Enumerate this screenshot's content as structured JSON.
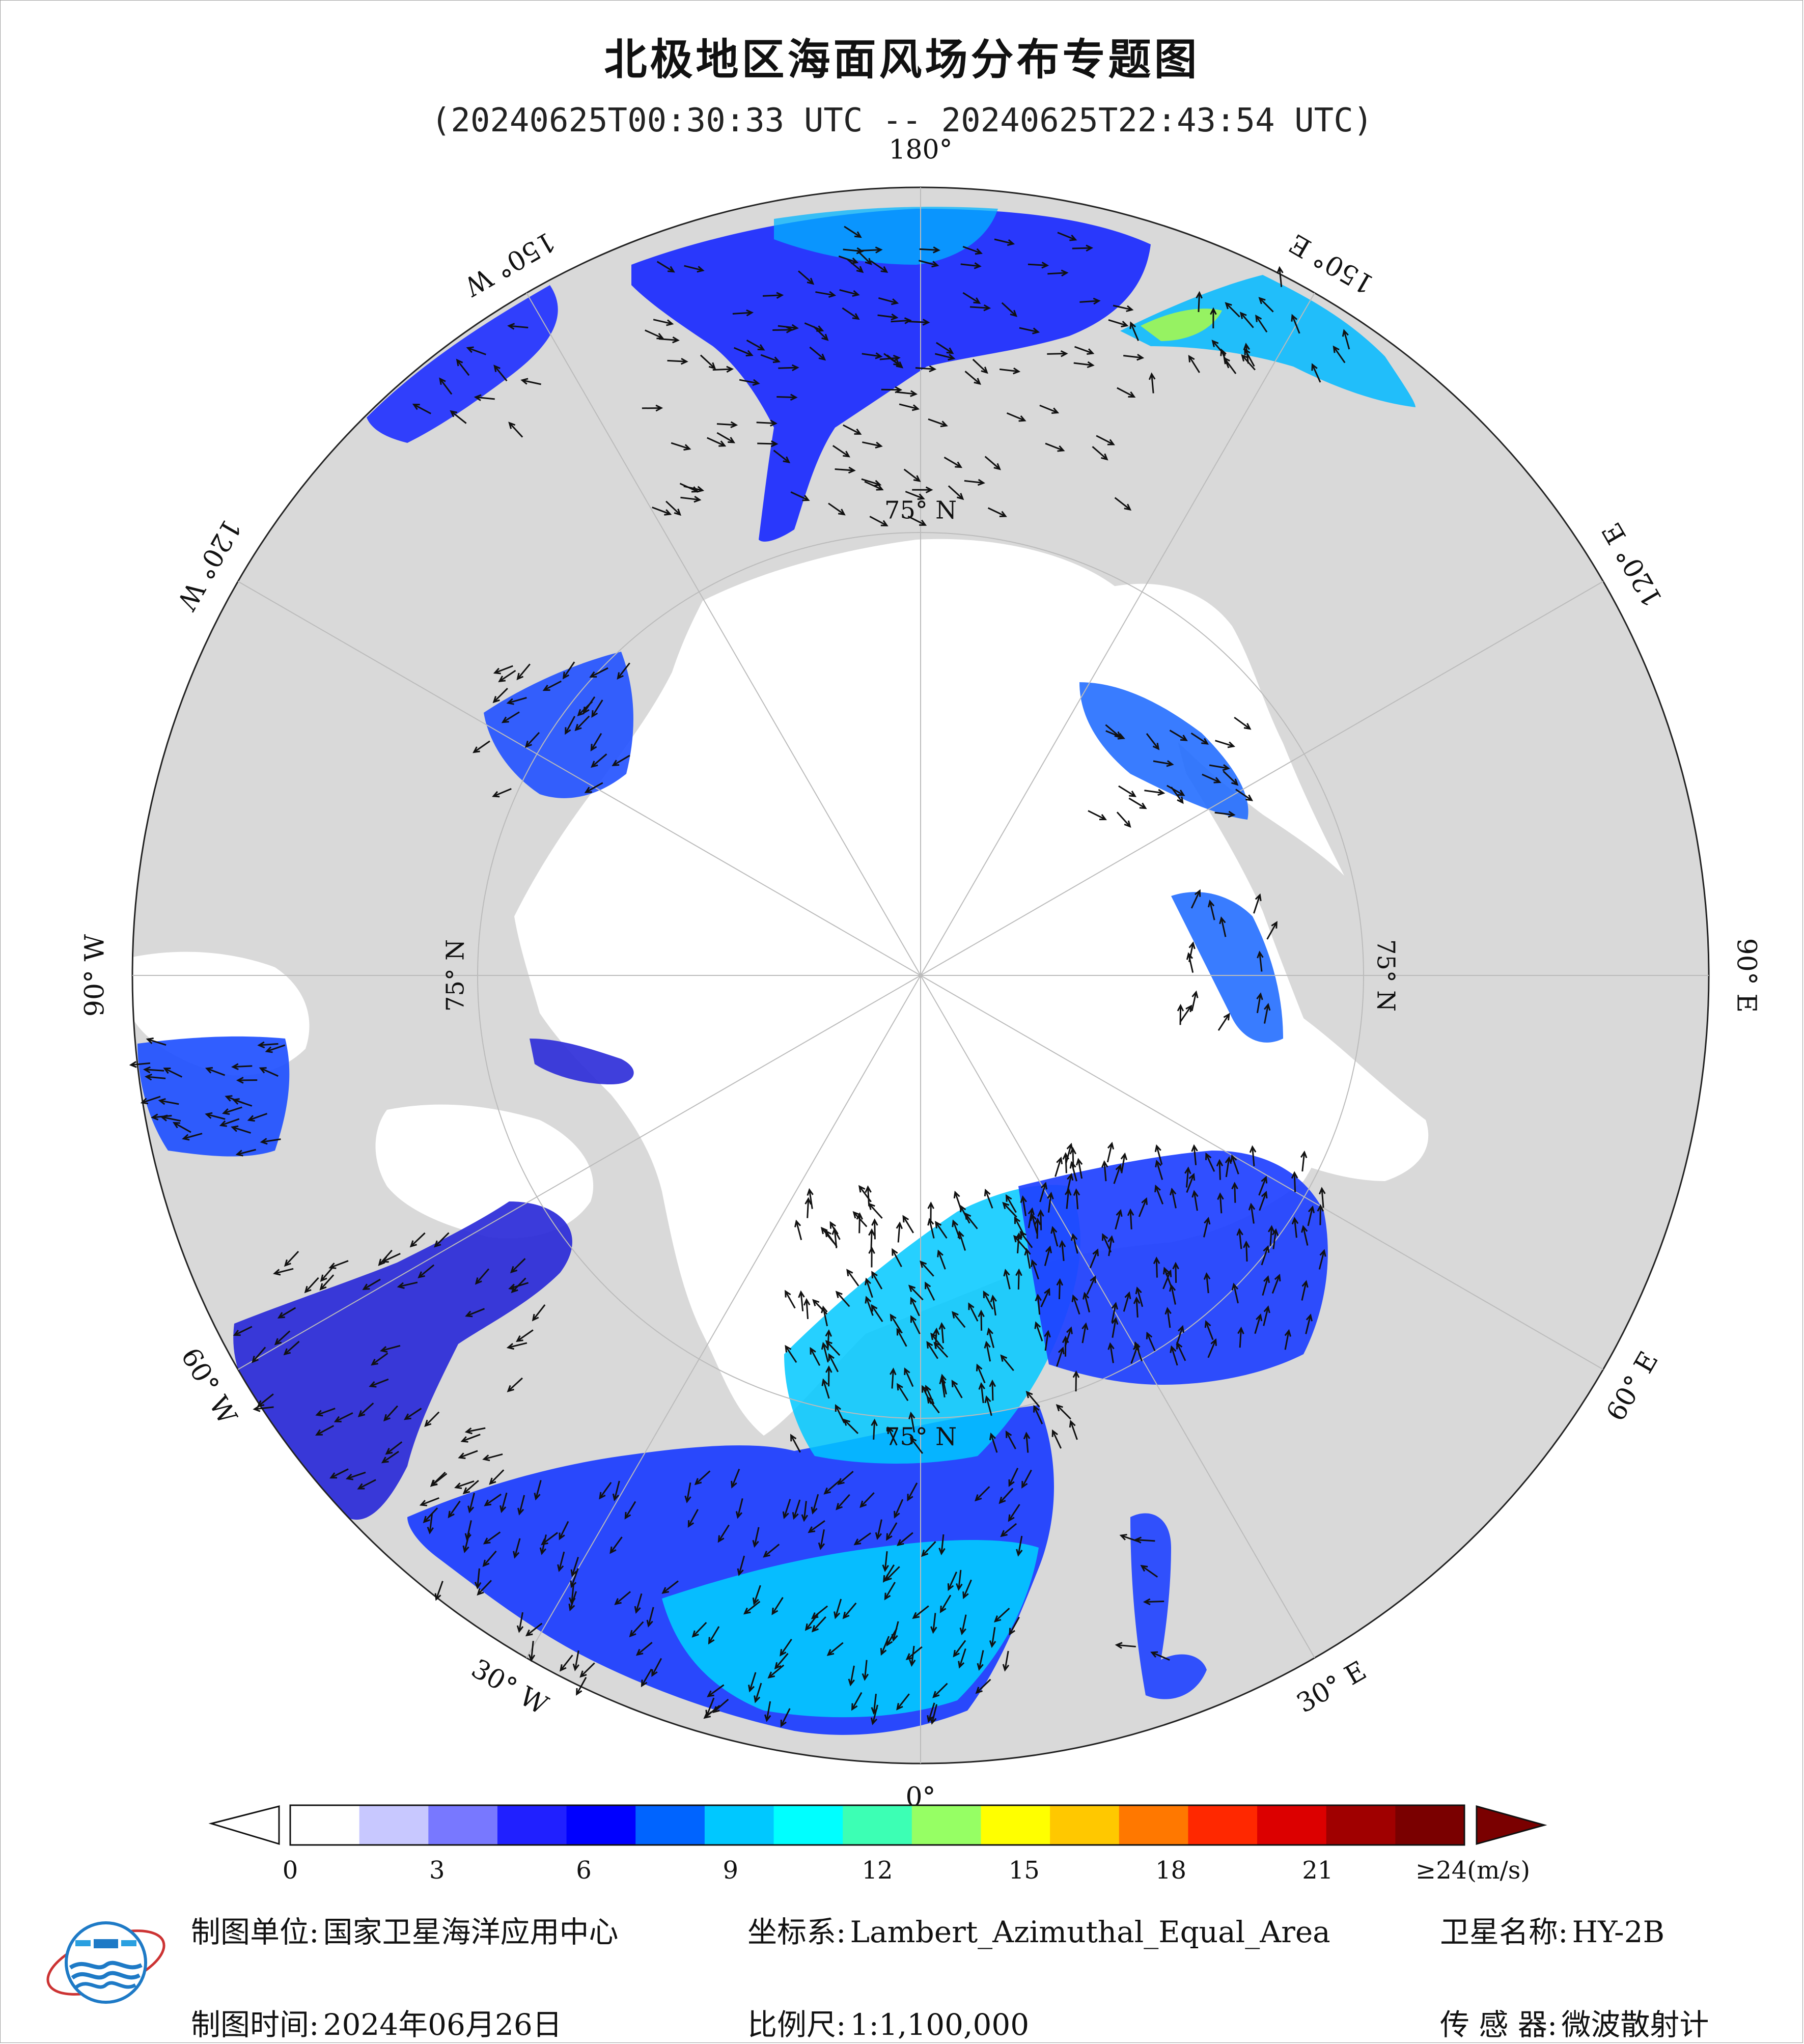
{
  "title": "北极地区海面风场分布专题图",
  "subtitle": "(20240625T00:30:33 UTC -- 20240625T22:43:54 UTC)",
  "map": {
    "projection": "Lambert_Azimuthal_Equal_Area",
    "center": "North Pole",
    "longitude_labels": [
      {
        "text": "180°",
        "lon": 180
      },
      {
        "text": "150° E",
        "lon": 150
      },
      {
        "text": "120° E",
        "lon": 120
      },
      {
        "text": "90° E",
        "lon": 90
      },
      {
        "text": "60° E",
        "lon": 60
      },
      {
        "text": "30° E",
        "lon": 30
      },
      {
        "text": "0°",
        "lon": 0
      },
      {
        "text": "30° W",
        "lon": -30
      },
      {
        "text": "60° W",
        "lon": -60
      },
      {
        "text": "90° W",
        "lon": -90
      },
      {
        "text": "120° W",
        "lon": -120
      },
      {
        "text": "150° W",
        "lon": -150
      }
    ],
    "latitude_label": "75° N",
    "land_color": "#d9d9d9",
    "sea_ice_color": "#ffffff",
    "graticule_color": "#bbbbbb"
  },
  "colorbar": {
    "unit_label": "≥24(m/s)",
    "ticks": [
      "0",
      "3",
      "6",
      "9",
      "12",
      "15",
      "18",
      "21"
    ],
    "min": 0,
    "max": 24,
    "colors": [
      "#ffffff",
      "#c8c8ff",
      "#7878ff",
      "#2020ff",
      "#0000ff",
      "#0064ff",
      "#00c8ff",
      "#00ffff",
      "#3cffb4",
      "#96ff64",
      "#ffff00",
      "#ffc800",
      "#ff7800",
      "#ff2800",
      "#dc0000",
      "#a00000",
      "#7a0000"
    ],
    "under_color": "#ffffff",
    "over_color": "#7a0000"
  },
  "footer": {
    "agency_label": "制图单位:",
    "agency_value": "国家卫星海洋应用中心",
    "crs_label": "坐标系:",
    "crs_value": "Lambert_Azimuthal_Equal_Area",
    "satellite_label": "卫星名称:",
    "satellite_value": "HY-2B",
    "date_label": "制图时间:",
    "date_value": "2024年06月26日",
    "scale_label": "比例尺:",
    "scale_value": "1:1,100,000",
    "sensor_label": "传 感 器:",
    "sensor_value": "微波散射计"
  }
}
